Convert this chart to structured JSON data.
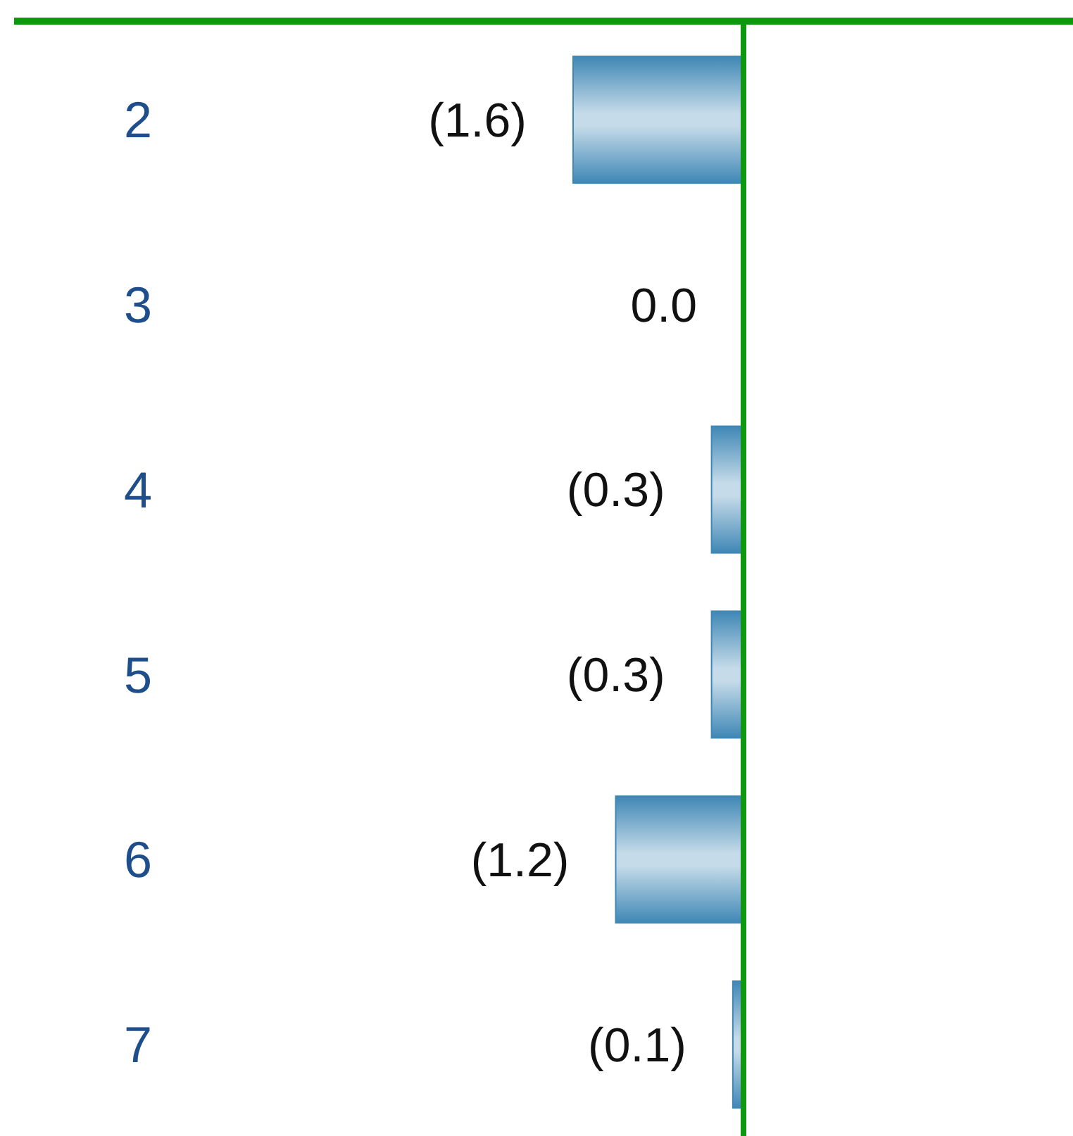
{
  "chart_data": {
    "type": "bar",
    "orientation": "horizontal",
    "categories": [
      "2",
      "3",
      "4",
      "5",
      "6",
      "7"
    ],
    "values": [
      -1.6,
      0.0,
      -0.3,
      -0.3,
      -1.2,
      -0.1
    ],
    "value_labels": [
      "(1.6)",
      "0.0",
      "(0.3)",
      "(0.3)",
      "(1.2)",
      "(0.1)"
    ],
    "color": "#3f87b5"
  }
}
